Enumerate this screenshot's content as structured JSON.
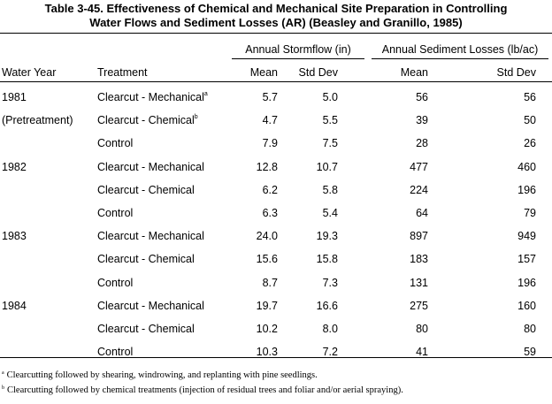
{
  "title": {
    "line1": "Table 3-45.  Effectiveness of Chemical and Mechanical Site Preparation in Controlling",
    "line2": "Water Flows and Sediment Losses (AR) (Beasley and Granillo, 1985)"
  },
  "header": {
    "group_stormflow": "Annual Stormflow (in)",
    "group_sediment": "Annual Sediment Losses (lb/ac)",
    "water_year": "Water Year",
    "treatment": "Treatment",
    "mean1": "Mean",
    "sd1": "Std Dev",
    "mean2": "Mean",
    "sd2": "Std Dev"
  },
  "rows": [
    {
      "year": "1981",
      "treatment": "Clearcut - Mechanical",
      "sup": "a",
      "flow_mean": "5.7",
      "flow_sd": "5.0",
      "sed_mean": "56",
      "sed_sd": "56"
    },
    {
      "year": "(Pretreatment)",
      "treatment": "Clearcut - Chemical",
      "sup": "b",
      "flow_mean": "4.7",
      "flow_sd": "5.5",
      "sed_mean": "39",
      "sed_sd": "50"
    },
    {
      "year": "",
      "treatment": "Control",
      "sup": "",
      "flow_mean": "7.9",
      "flow_sd": "7.5",
      "sed_mean": "28",
      "sed_sd": "26"
    },
    {
      "year": "1982",
      "treatment": "Clearcut - Mechanical",
      "sup": "",
      "flow_mean": "12.8",
      "flow_sd": "10.7",
      "sed_mean": "477",
      "sed_sd": "460"
    },
    {
      "year": "",
      "treatment": "Clearcut - Chemical",
      "sup": "",
      "flow_mean": "6.2",
      "flow_sd": "5.8",
      "sed_mean": "224",
      "sed_sd": "196"
    },
    {
      "year": "",
      "treatment": "Control",
      "sup": "",
      "flow_mean": "6.3",
      "flow_sd": "5.4",
      "sed_mean": "64",
      "sed_sd": "79"
    },
    {
      "year": "1983",
      "treatment": "Clearcut - Mechanical",
      "sup": "",
      "flow_mean": "24.0",
      "flow_sd": "19.3",
      "sed_mean": "897",
      "sed_sd": "949"
    },
    {
      "year": "",
      "treatment": "Clearcut - Chemical",
      "sup": "",
      "flow_mean": "15.6",
      "flow_sd": "15.8",
      "sed_mean": "183",
      "sed_sd": "157"
    },
    {
      "year": "",
      "treatment": "Control",
      "sup": "",
      "flow_mean": "8.7",
      "flow_sd": "7.3",
      "sed_mean": "131",
      "sed_sd": "196"
    },
    {
      "year": "1984",
      "treatment": "Clearcut - Mechanical",
      "sup": "",
      "flow_mean": "19.7",
      "flow_sd": "16.6",
      "sed_mean": "275",
      "sed_sd": "160"
    },
    {
      "year": "",
      "treatment": "Clearcut - Chemical",
      "sup": "",
      "flow_mean": "10.2",
      "flow_sd": "8.0",
      "sed_mean": "80",
      "sed_sd": "80"
    },
    {
      "year": "",
      "treatment": "Control",
      "sup": "",
      "flow_mean": "10.3",
      "flow_sd": "7.2",
      "sed_mean": "41",
      "sed_sd": "59"
    }
  ],
  "footnotes": [
    {
      "mark": "a",
      "text": "Clearcutting followed by shearing, windrowing, and replanting with pine seedlings."
    },
    {
      "mark": "b",
      "text": "Clearcutting followed by chemical treatments (injection of residual trees and foliar and/or aerial spraying)."
    }
  ]
}
